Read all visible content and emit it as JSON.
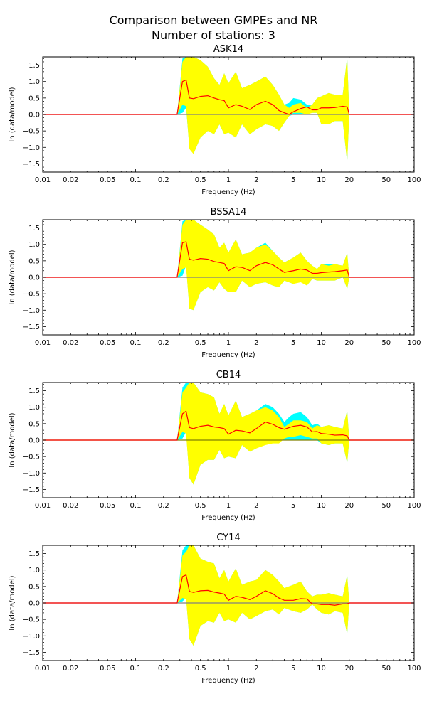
{
  "figure": {
    "title_line1": "Comparison between GMPEs and NR",
    "title_line2": "Number of stations: 3"
  },
  "colors": {
    "band_outer": "#00ffff",
    "band_inner": "#ffff00",
    "mean_line": "#ff0000",
    "zero_line": "#808080",
    "zero_line_cb": "#808000"
  },
  "chart_data": [
    {
      "type": "area",
      "title": "ASK14",
      "xlabel": "Frequency (Hz)",
      "ylabel": "ln (data/model)",
      "xscale": "log",
      "xlim": [
        0.01,
        100
      ],
      "ylim": [
        -1.75,
        1.75
      ],
      "xticks": [
        0.01,
        0.02,
        0.05,
        0.1,
        0.2,
        0.5,
        1,
        2,
        5,
        10,
        20,
        50,
        100
      ],
      "xtick_labels": [
        "0.01",
        "0.02",
        "0.05",
        "0.1",
        "0.2",
        "0.5",
        "1",
        "2",
        "5",
        "10",
        "20",
        "50",
        "100"
      ],
      "yticks": [
        -1.5,
        -1.0,
        -0.5,
        0.0,
        0.5,
        1.0,
        1.5
      ],
      "ytick_labels": [
        "−1.5",
        "−1.0",
        "−0.5",
        "0.0",
        "0.5",
        "1.0",
        "1.5"
      ],
      "x": [
        0.01,
        0.28,
        0.32,
        0.35,
        0.38,
        0.42,
        0.5,
        0.6,
        0.7,
        0.8,
        0.9,
        1.0,
        1.2,
        1.4,
        1.7,
        2.0,
        2.5,
        3.0,
        3.5,
        4.0,
        4.5,
        5.0,
        6.0,
        7.0,
        8.0,
        9.0,
        10.0,
        12.0,
        14.0,
        17.0,
        19.0,
        20.0,
        100
      ],
      "series": [
        {
          "role": "outer_upper",
          "values": [
            0,
            0,
            1.7,
            1.75,
            1.75,
            1.75,
            1.65,
            1.45,
            1.1,
            0.9,
            1.25,
            0.95,
            1.3,
            0.8,
            0.9,
            1.0,
            1.15,
            0.9,
            0.6,
            0.3,
            0.35,
            0.5,
            0.45,
            0.3,
            0.3,
            0.5,
            0.55,
            0.65,
            0.6,
            0.6,
            1.75,
            0,
            0
          ]
        },
        {
          "role": "outer_lower",
          "values": [
            0,
            0,
            0.05,
            0.2,
            -1.0,
            -1.2,
            -0.7,
            -0.5,
            -0.6,
            -0.3,
            -0.6,
            -0.55,
            -0.7,
            -0.3,
            -0.6,
            -0.45,
            -0.3,
            -0.35,
            -0.5,
            -0.25,
            -0.05,
            0.0,
            0.0,
            0.05,
            0.05,
            0.05,
            -0.3,
            -0.3,
            -0.2,
            -0.2,
            -1.45,
            0,
            0
          ]
        },
        {
          "role": "inner_upper",
          "values": [
            0,
            0,
            1.6,
            1.75,
            1.75,
            1.75,
            1.65,
            1.45,
            1.1,
            0.9,
            1.25,
            0.95,
            1.3,
            0.8,
            0.9,
            1.0,
            1.15,
            0.9,
            0.6,
            0.3,
            0.2,
            0.3,
            0.35,
            0.2,
            0.3,
            0.5,
            0.55,
            0.65,
            0.6,
            0.6,
            1.75,
            0,
            0
          ]
        },
        {
          "role": "inner_lower",
          "values": [
            0,
            0,
            0.3,
            0.25,
            -1.05,
            -1.2,
            -0.7,
            -0.5,
            -0.6,
            -0.3,
            -0.6,
            -0.55,
            -0.7,
            -0.3,
            -0.6,
            -0.45,
            -0.3,
            -0.35,
            -0.5,
            -0.25,
            -0.05,
            0.05,
            0.05,
            0.0,
            0.05,
            0.05,
            -0.3,
            -0.3,
            -0.2,
            -0.2,
            -1.45,
            0,
            0
          ]
        },
        {
          "role": "mean",
          "values": [
            0,
            0,
            1.0,
            1.05,
            0.5,
            0.48,
            0.55,
            0.57,
            0.5,
            0.45,
            0.42,
            0.2,
            0.3,
            0.25,
            0.15,
            0.3,
            0.4,
            0.3,
            0.12,
            0.05,
            0.0,
            0.08,
            0.18,
            0.23,
            0.14,
            0.14,
            0.2,
            0.2,
            0.21,
            0.25,
            0.23,
            0,
            0
          ]
        }
      ]
    },
    {
      "type": "area",
      "title": "BSSA14",
      "xlabel": "Frequency (Hz)",
      "ylabel": "ln (data/model)",
      "xscale": "log",
      "xlim": [
        0.01,
        100
      ],
      "ylim": [
        -1.75,
        1.75
      ],
      "xticks": [
        0.01,
        0.02,
        0.05,
        0.1,
        0.2,
        0.5,
        1,
        2,
        5,
        10,
        20,
        50,
        100
      ],
      "xtick_labels": [
        "0.01",
        "0.02",
        "0.05",
        "0.1",
        "0.2",
        "0.5",
        "1",
        "2",
        "5",
        "10",
        "20",
        "50",
        "100"
      ],
      "yticks": [
        -1.5,
        -1.0,
        -0.5,
        0.0,
        0.5,
        1.0,
        1.5
      ],
      "ytick_labels": [
        "−1.5",
        "−1.0",
        "−0.5",
        "0.0",
        "0.5",
        "1.0",
        "1.5"
      ],
      "x": [
        0.01,
        0.28,
        0.32,
        0.35,
        0.38,
        0.42,
        0.5,
        0.6,
        0.7,
        0.8,
        0.9,
        1.0,
        1.2,
        1.4,
        1.7,
        2.0,
        2.5,
        3.0,
        3.5,
        4.0,
        5.0,
        6.0,
        7.0,
        8.0,
        9.0,
        10.0,
        12.0,
        14.0,
        17.0,
        19.0,
        20.0,
        100
      ],
      "series": [
        {
          "role": "outer_upper",
          "values": [
            0,
            0,
            1.7,
            1.75,
            1.75,
            1.75,
            1.6,
            1.45,
            1.3,
            0.9,
            1.05,
            0.75,
            1.15,
            0.7,
            0.75,
            0.9,
            1.05,
            0.8,
            0.6,
            0.45,
            0.6,
            0.75,
            0.5,
            0.35,
            0.25,
            0.4,
            0.4,
            0.4,
            0.35,
            0.75,
            0,
            0
          ]
        },
        {
          "role": "outer_lower",
          "values": [
            0,
            0,
            0.05,
            0.35,
            -0.95,
            -1.0,
            -0.45,
            -0.3,
            -0.4,
            -0.15,
            -0.35,
            -0.45,
            -0.45,
            -0.1,
            -0.3,
            -0.2,
            -0.15,
            -0.25,
            -0.3,
            -0.1,
            -0.2,
            -0.1,
            -0.25,
            -0.05,
            -0.1,
            -0.1,
            -0.1,
            -0.1,
            0.0,
            -0.35,
            0,
            0
          ]
        },
        {
          "role": "inner_upper",
          "values": [
            0,
            0,
            1.6,
            1.75,
            1.75,
            1.75,
            1.6,
            1.45,
            1.3,
            0.9,
            1.05,
            0.75,
            1.15,
            0.7,
            0.75,
            0.9,
            1.0,
            0.8,
            0.6,
            0.45,
            0.6,
            0.75,
            0.5,
            0.35,
            0.25,
            0.4,
            0.35,
            0.4,
            0.35,
            0.75,
            0,
            0
          ]
        },
        {
          "role": "inner_lower",
          "values": [
            0,
            0,
            0.25,
            0.3,
            -0.95,
            -1.0,
            -0.45,
            -0.3,
            -0.4,
            -0.15,
            -0.35,
            -0.45,
            -0.45,
            -0.1,
            -0.3,
            -0.2,
            -0.15,
            -0.25,
            -0.3,
            -0.1,
            -0.2,
            -0.15,
            -0.25,
            -0.05,
            -0.1,
            -0.1,
            -0.1,
            -0.1,
            0.0,
            -0.35,
            0,
            0
          ]
        },
        {
          "role": "mean",
          "values": [
            0,
            0,
            1.05,
            1.08,
            0.55,
            0.52,
            0.57,
            0.55,
            0.48,
            0.45,
            0.42,
            0.2,
            0.32,
            0.3,
            0.2,
            0.35,
            0.45,
            0.38,
            0.25,
            0.15,
            0.2,
            0.25,
            0.22,
            0.12,
            0.12,
            0.14,
            0.16,
            0.17,
            0.2,
            0.22,
            0,
            0
          ]
        }
      ]
    },
    {
      "type": "area",
      "title": "CB14",
      "xlabel": "Frequency (Hz)",
      "ylabel": "ln (data/model)",
      "xscale": "log",
      "xlim": [
        0.01,
        100
      ],
      "ylim": [
        -1.75,
        1.75
      ],
      "xticks": [
        0.01,
        0.02,
        0.05,
        0.1,
        0.2,
        0.5,
        1,
        2,
        5,
        10,
        20,
        50,
        100
      ],
      "xtick_labels": [
        "0.01",
        "0.02",
        "0.05",
        "0.1",
        "0.2",
        "0.5",
        "1",
        "2",
        "5",
        "10",
        "20",
        "50",
        "100"
      ],
      "yticks": [
        -1.5,
        -1.0,
        -0.5,
        0.0,
        0.5,
        1.0,
        1.5
      ],
      "ytick_labels": [
        "−1.5",
        "−1.0",
        "−0.5",
        "0.0",
        "0.5",
        "1.0",
        "1.5"
      ],
      "x": [
        0.01,
        0.28,
        0.32,
        0.35,
        0.38,
        0.42,
        0.5,
        0.6,
        0.7,
        0.8,
        0.9,
        1.0,
        1.2,
        1.4,
        1.7,
        2.0,
        2.5,
        3.0,
        3.5,
        4.0,
        4.5,
        5.0,
        6.0,
        7.0,
        8.0,
        9.0,
        10.0,
        12.0,
        14.0,
        17.0,
        19.0,
        20.0,
        100
      ],
      "series": [
        {
          "role": "outer_upper",
          "values": [
            0,
            0,
            1.6,
            1.75,
            1.75,
            1.75,
            1.45,
            1.4,
            1.3,
            0.8,
            1.1,
            0.75,
            1.2,
            0.7,
            0.8,
            0.9,
            1.1,
            1.0,
            0.8,
            0.55,
            0.7,
            0.8,
            0.85,
            0.7,
            0.45,
            0.5,
            0.4,
            0.45,
            0.4,
            0.35,
            0.9,
            0,
            0
          ]
        },
        {
          "role": "outer_lower",
          "values": [
            0,
            0,
            0.05,
            0.25,
            -1.15,
            -1.35,
            -0.75,
            -0.6,
            -0.6,
            -0.3,
            -0.55,
            -0.5,
            -0.55,
            -0.15,
            -0.35,
            -0.25,
            0.0,
            0.0,
            0.0,
            0.0,
            0.0,
            0.0,
            0.0,
            0.0,
            0.0,
            0.0,
            -0.1,
            -0.15,
            -0.1,
            -0.1,
            -0.7,
            0,
            0
          ]
        },
        {
          "role": "inner_upper",
          "values": [
            0,
            0,
            1.45,
            1.6,
            1.75,
            1.75,
            1.45,
            1.4,
            1.3,
            0.8,
            1.1,
            0.75,
            1.2,
            0.7,
            0.8,
            0.9,
            1.0,
            0.9,
            0.7,
            0.4,
            0.5,
            0.6,
            0.6,
            0.55,
            0.35,
            0.45,
            0.4,
            0.45,
            0.4,
            0.35,
            0.9,
            0,
            0
          ]
        },
        {
          "role": "inner_lower",
          "values": [
            0,
            0,
            0.25,
            0.2,
            -1.15,
            -1.35,
            -0.75,
            -0.6,
            -0.6,
            -0.3,
            -0.55,
            -0.5,
            -0.55,
            -0.15,
            -0.35,
            -0.25,
            -0.15,
            -0.1,
            -0.1,
            0.05,
            0.1,
            0.1,
            0.15,
            0.1,
            0.05,
            0.05,
            -0.1,
            -0.15,
            -0.1,
            -0.1,
            -0.7,
            0,
            0
          ]
        },
        {
          "role": "mean",
          "values": [
            0,
            0,
            0.8,
            0.88,
            0.38,
            0.35,
            0.42,
            0.45,
            0.4,
            0.38,
            0.35,
            0.18,
            0.3,
            0.28,
            0.22,
            0.35,
            0.55,
            0.48,
            0.38,
            0.33,
            0.38,
            0.42,
            0.45,
            0.4,
            0.25,
            0.26,
            0.2,
            0.18,
            0.15,
            0.16,
            0.13,
            0,
            0
          ]
        }
      ]
    },
    {
      "type": "area",
      "title": "CY14",
      "xlabel": "Frequency (Hz)",
      "ylabel": "ln (data/model)",
      "xscale": "log",
      "xlim": [
        0.01,
        100
      ],
      "ylim": [
        -1.75,
        1.75
      ],
      "xticks": [
        0.01,
        0.02,
        0.05,
        0.1,
        0.2,
        0.5,
        1,
        2,
        5,
        10,
        20,
        50,
        100
      ],
      "xtick_labels": [
        "0.01",
        "0.02",
        "0.05",
        "0.1",
        "0.2",
        "0.5",
        "1",
        "2",
        "5",
        "10",
        "20",
        "50",
        "100"
      ],
      "yticks": [
        -1.5,
        -1.0,
        -0.5,
        0.0,
        0.5,
        1.0,
        1.5
      ],
      "ytick_labels": [
        "−1.5",
        "−1.0",
        "−0.5",
        "0.0",
        "0.5",
        "1.0",
        "1.5"
      ],
      "x": [
        0.01,
        0.28,
        0.32,
        0.35,
        0.38,
        0.42,
        0.5,
        0.6,
        0.7,
        0.8,
        0.9,
        1.0,
        1.2,
        1.4,
        1.7,
        2.0,
        2.5,
        3.0,
        3.5,
        4.0,
        5.0,
        6.0,
        7.0,
        8.0,
        9.0,
        10.0,
        12.0,
        14.0,
        17.0,
        19.0,
        20.0,
        100
      ],
      "series": [
        {
          "role": "outer_upper",
          "values": [
            0,
            0,
            1.6,
            1.75,
            1.75,
            1.75,
            1.35,
            1.25,
            1.2,
            0.75,
            1.0,
            0.65,
            1.05,
            0.55,
            0.65,
            0.7,
            1.0,
            0.85,
            0.65,
            0.45,
            0.55,
            0.65,
            0.35,
            0.2,
            0.25,
            0.25,
            0.3,
            0.25,
            0.2,
            0.85,
            0,
            0
          ]
        },
        {
          "role": "outer_lower",
          "values": [
            0,
            0,
            0.05,
            0.15,
            -1.1,
            -1.3,
            -0.7,
            -0.55,
            -0.6,
            -0.3,
            -0.55,
            -0.5,
            -0.6,
            -0.3,
            -0.5,
            -0.4,
            -0.25,
            -0.2,
            -0.35,
            -0.15,
            -0.25,
            -0.3,
            -0.2,
            -0.05,
            -0.2,
            -0.3,
            -0.35,
            -0.25,
            -0.3,
            -0.95,
            0,
            0
          ]
        },
        {
          "role": "inner_upper",
          "values": [
            0,
            0,
            1.45,
            1.55,
            1.75,
            1.75,
            1.35,
            1.25,
            1.2,
            0.75,
            1.0,
            0.65,
            1.05,
            0.55,
            0.65,
            0.7,
            1.0,
            0.85,
            0.65,
            0.45,
            0.55,
            0.65,
            0.35,
            0.2,
            0.25,
            0.25,
            0.3,
            0.25,
            0.2,
            0.85,
            0,
            0
          ]
        },
        {
          "role": "inner_lower",
          "values": [
            0,
            0,
            0.15,
            0.12,
            -1.1,
            -1.3,
            -0.7,
            -0.55,
            -0.6,
            -0.3,
            -0.55,
            -0.5,
            -0.6,
            -0.3,
            -0.5,
            -0.4,
            -0.25,
            -0.2,
            -0.35,
            -0.15,
            -0.25,
            -0.3,
            -0.2,
            -0.05,
            -0.2,
            -0.3,
            -0.35,
            -0.25,
            -0.3,
            -0.95,
            0,
            0
          ]
        },
        {
          "role": "mean",
          "values": [
            0,
            0,
            0.8,
            0.85,
            0.35,
            0.32,
            0.37,
            0.38,
            0.33,
            0.3,
            0.27,
            0.08,
            0.2,
            0.17,
            0.1,
            0.2,
            0.37,
            0.28,
            0.15,
            0.08,
            0.08,
            0.13,
            0.12,
            -0.03,
            -0.03,
            -0.05,
            -0.05,
            -0.07,
            -0.03,
            -0.03,
            0,
            0
          ]
        }
      ]
    }
  ]
}
